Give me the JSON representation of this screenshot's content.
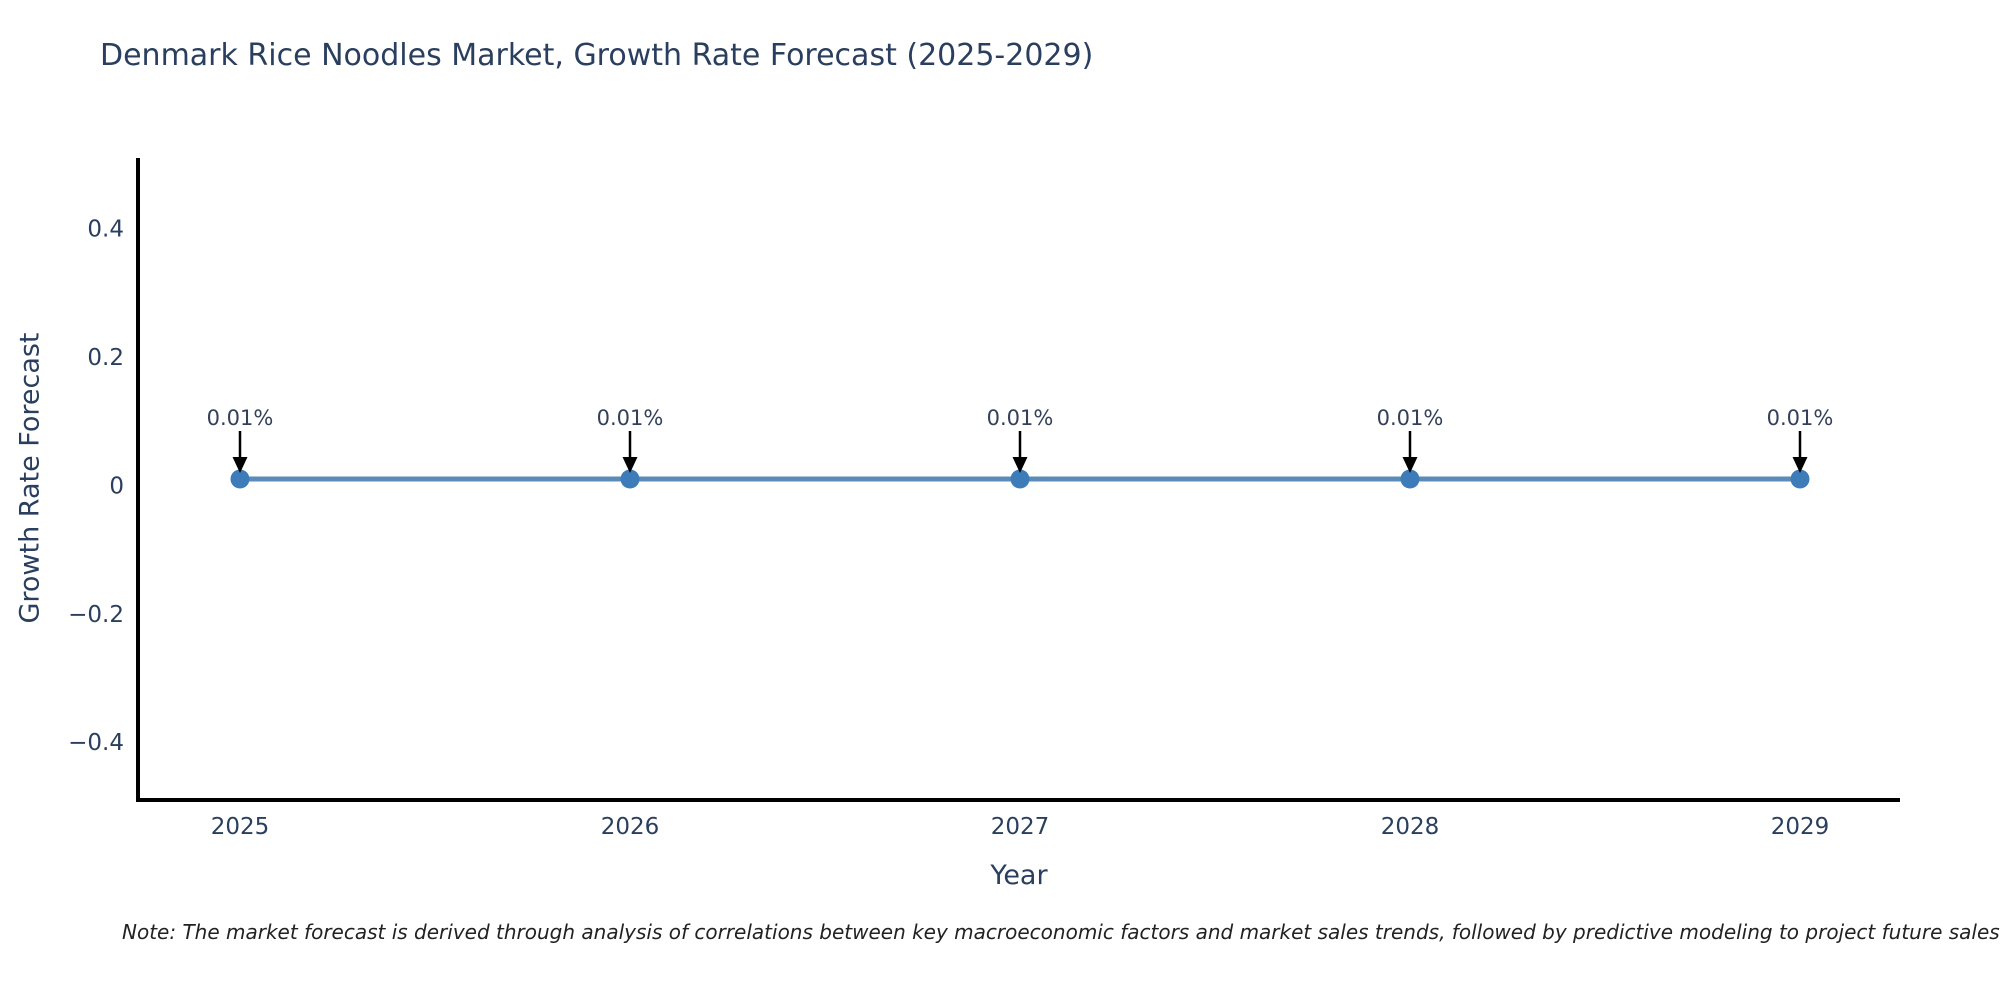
{
  "title": "Denmark Rice Noodles Market, Growth Rate Forecast (2025-2029)",
  "note": "Note: The market forecast is derived through analysis of correlations between key macroeconomic factors and market sales trends, followed by predictive modeling to project future sales",
  "chart_data": {
    "type": "line",
    "title": "Denmark Rice Noodles Market, Growth Rate Forecast (2025-2029)",
    "xlabel": "Year",
    "ylabel": "Growth Rate Forecast",
    "x": [
      2025,
      2026,
      2027,
      2028,
      2029
    ],
    "series": [
      {
        "name": "Growth Rate Forecast",
        "values": [
          0.01,
          0.01,
          0.01,
          0.01,
          0.01
        ]
      }
    ],
    "point_labels": [
      "0.01%",
      "0.01%",
      "0.01%",
      "0.01%",
      "0.01%"
    ],
    "xticks": [
      "2025",
      "2026",
      "2027",
      "2028",
      "2029"
    ],
    "yticks": [
      {
        "label": "0.4",
        "value": 0.4
      },
      {
        "label": "0.2",
        "value": 0.2
      },
      {
        "label": "0",
        "value": 0
      },
      {
        "label": "−0.2",
        "value": -0.2
      },
      {
        "label": "−0.4",
        "value": -0.4
      }
    ],
    "ylim": [
      -0.49,
      0.51
    ],
    "grid": false,
    "legend_position": "none",
    "colors": {
      "line": "#5b8cb8",
      "marker": "#3c7cb8",
      "axis_line": "#000000",
      "axis_text": "#2a3f5f",
      "annotation_text": "#34405a",
      "arrow": "#000000",
      "background": "#ffffff"
    }
  }
}
